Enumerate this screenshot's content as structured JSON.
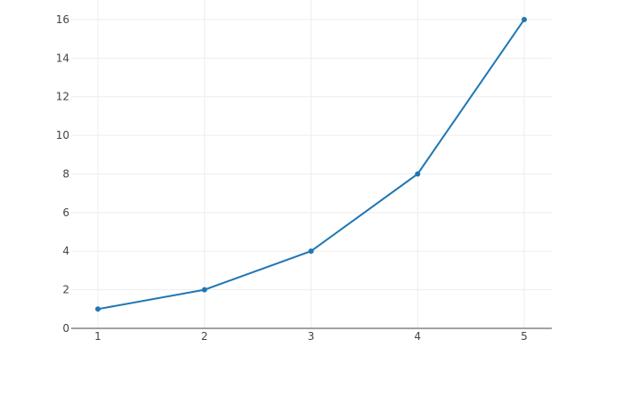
{
  "chart_data": {
    "type": "line",
    "x": [
      1,
      2,
      3,
      4,
      5
    ],
    "y": [
      1,
      2,
      4,
      8,
      16
    ],
    "xticks": [
      1,
      2,
      3,
      4,
      5
    ],
    "yticks": [
      0,
      2,
      4,
      6,
      8,
      10,
      12,
      14,
      16
    ],
    "xlim": [
      0.75,
      5.26
    ],
    "ylim": [
      0,
      16.8
    ],
    "grid": true,
    "color": "#1f77b4",
    "title": "",
    "xlabel": "",
    "ylabel": ""
  }
}
